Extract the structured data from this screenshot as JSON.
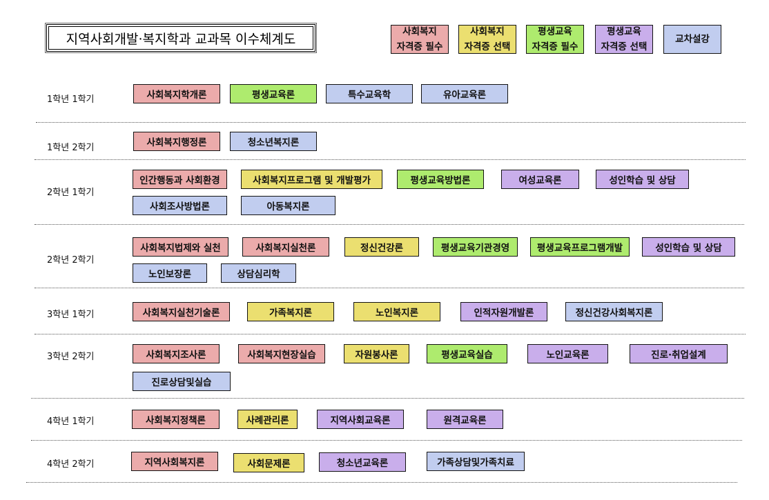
{
  "title": "지역사회개발·복지학과 교과목 이수체계도",
  "colors": {
    "sw_required": "#ebabab",
    "sw_elective": "#ebdf70",
    "le_required": "#aeeb6e",
    "le_elective": "#c9aeeb",
    "cross": "#c1cdef"
  },
  "legend": [
    {
      "line1": "사회복지",
      "line2": "자격증 필수",
      "type": "sw_required"
    },
    {
      "line1": "사회복지",
      "line2": "자격증 선택",
      "type": "sw_elective"
    },
    {
      "line1": "평생교육",
      "line2": "자격증 필수",
      "type": "le_required"
    },
    {
      "line1": "평생교육",
      "line2": "자격증 선택",
      "type": "le_elective"
    },
    {
      "line1": "교차설강",
      "line2": "",
      "type": "cross"
    }
  ],
  "semesters": [
    {
      "label": "1학년 1학기",
      "courses": [
        {
          "name": "사회복지학개론",
          "type": "sw_required"
        },
        {
          "name": "평생교육론",
          "type": "le_required"
        },
        {
          "name": "특수교육학",
          "type": "cross"
        },
        {
          "name": "유아교육론",
          "type": "cross"
        }
      ]
    },
    {
      "label": "1학년 2학기",
      "courses": [
        {
          "name": "사회복지행정론",
          "type": "sw_required"
        },
        {
          "name": "청소년복지론",
          "type": "cross"
        }
      ]
    },
    {
      "label": "2학년 1학기",
      "courses": [
        {
          "name": "인간행동과 사회환경",
          "type": "sw_required"
        },
        {
          "name": "사회복지프로그램 및 개발평가",
          "type": "sw_elective"
        },
        {
          "name": "평생교육방법론",
          "type": "le_required"
        },
        {
          "name": "여성교육론",
          "type": "le_elective"
        },
        {
          "name": "성인학습 및 상담",
          "type": "le_elective"
        },
        {
          "name": "사회조사방법론",
          "type": "cross"
        },
        {
          "name": "아동복지론",
          "type": "cross"
        }
      ]
    },
    {
      "label": "2학년 2학기",
      "courses": [
        {
          "name": "사회복지법제와 실천",
          "type": "sw_required"
        },
        {
          "name": "사회복지실천론",
          "type": "sw_required"
        },
        {
          "name": "정신건강론",
          "type": "sw_elective"
        },
        {
          "name": "평생교육기관경영",
          "type": "le_required"
        },
        {
          "name": "평생교육프로그램개발",
          "type": "le_required"
        },
        {
          "name": "성인학습 및 상담",
          "type": "le_elective"
        },
        {
          "name": "노인보장론",
          "type": "cross"
        },
        {
          "name": "상담심리학",
          "type": "cross"
        }
      ]
    },
    {
      "label": "3학년 1학기",
      "courses": [
        {
          "name": "사회복지실천기술론",
          "type": "sw_required"
        },
        {
          "name": "가족복지론",
          "type": "sw_elective"
        },
        {
          "name": "노인복지론",
          "type": "sw_elective"
        },
        {
          "name": "인적자원개발론",
          "type": "le_elective"
        },
        {
          "name": "정신건강사회복지론",
          "type": "cross"
        }
      ]
    },
    {
      "label": "3학년 2학기",
      "courses": [
        {
          "name": "사회복지조사론",
          "type": "sw_required"
        },
        {
          "name": "사회복지현장실습",
          "type": "sw_required"
        },
        {
          "name": "자원봉사론",
          "type": "sw_elective"
        },
        {
          "name": "평생교육실습",
          "type": "le_required"
        },
        {
          "name": "노인교육론",
          "type": "le_elective"
        },
        {
          "name": "진로·취업설계",
          "type": "le_elective"
        },
        {
          "name": "진로상담및실습",
          "type": "cross"
        }
      ]
    },
    {
      "label": "4학년 1학기",
      "courses": [
        {
          "name": "사회복지정책론",
          "type": "sw_required"
        },
        {
          "name": "사례관리론",
          "type": "sw_elective"
        },
        {
          "name": "지역사회교육론",
          "type": "le_elective"
        },
        {
          "name": "원격교육론",
          "type": "le_elective"
        }
      ]
    },
    {
      "label": "4학년 2학기",
      "courses": [
        {
          "name": "지역사회복지론",
          "type": "sw_required"
        },
        {
          "name": "사회문제론",
          "type": "sw_elective"
        },
        {
          "name": "청소년교육론",
          "type": "le_elective"
        },
        {
          "name": "가족상담및가족치료",
          "type": "cross"
        }
      ]
    }
  ]
}
